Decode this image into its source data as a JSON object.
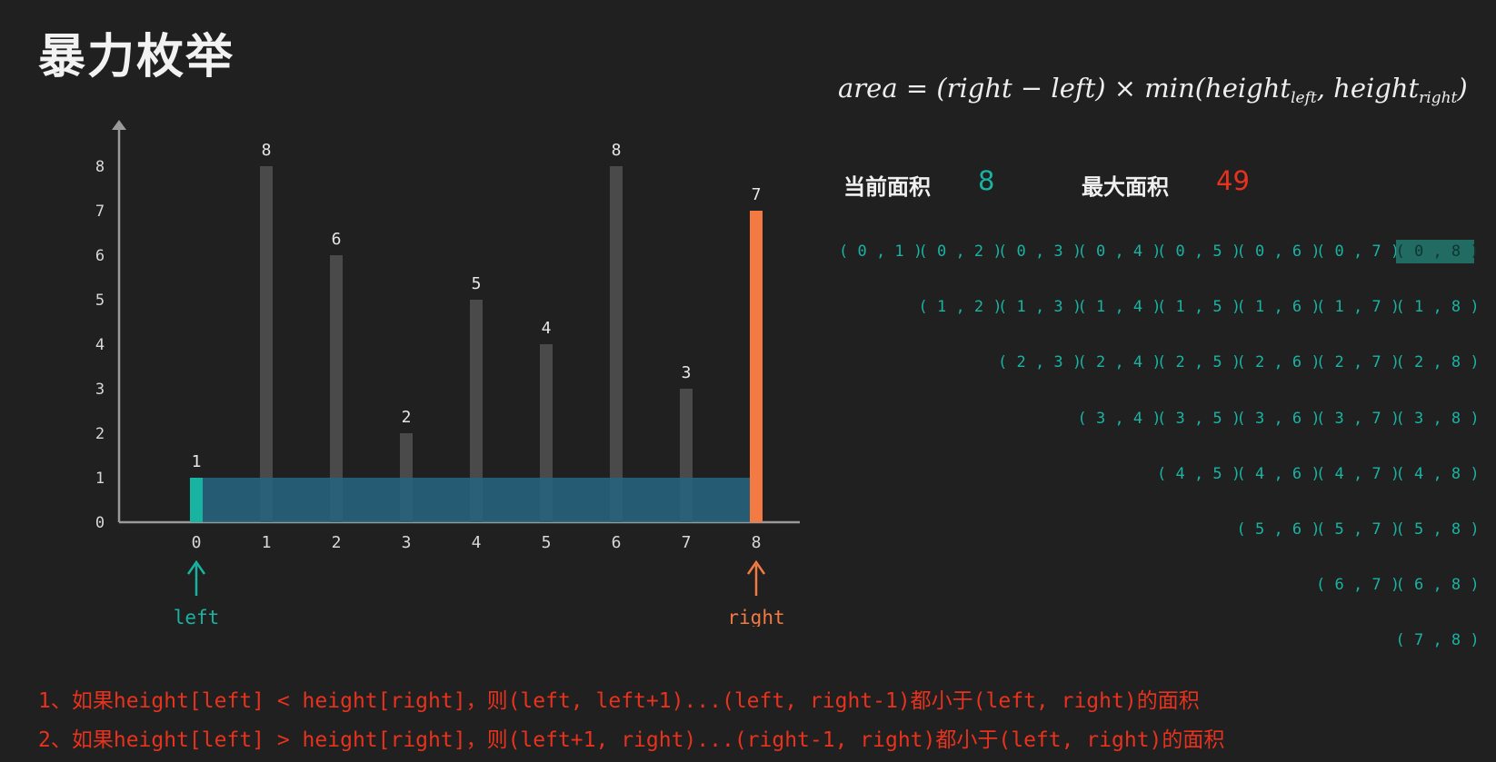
{
  "title": "暴力枚举",
  "formula": {
    "prefix": "area = (right − left) × min(height",
    "sub1": "left",
    "mid": ", height",
    "sub2": "right",
    "suffix": ")"
  },
  "stats": {
    "current_label": "当前面积",
    "current_value": "8",
    "max_label": "最大面积",
    "max_value": "49",
    "current_color": "#19b3a2",
    "max_color": "#e8321d"
  },
  "pairs": [
    [
      "(0,1)",
      "(0,2)",
      "(0,3)",
      "(0,4)",
      "(0,5)",
      "(0,6)",
      "(0,7)",
      "(0,8)"
    ],
    [
      "(1,2)",
      "(1,3)",
      "(1,4)",
      "(1,5)",
      "(1,6)",
      "(1,7)",
      "(1,8)"
    ],
    [
      "(2,3)",
      "(2,4)",
      "(2,5)",
      "(2,6)",
      "(2,7)",
      "(2,8)"
    ],
    [
      "(3,4)",
      "(3,5)",
      "(3,6)",
      "(3,7)",
      "(3,8)"
    ],
    [
      "(4,5)",
      "(4,6)",
      "(4,7)",
      "(4,8)"
    ],
    [
      "(5,6)",
      "(5,7)",
      "(5,8)"
    ],
    [
      "(6,7)",
      "(6,8)"
    ],
    [
      "(7,8)"
    ]
  ],
  "active_pair": "(0,8)",
  "notes": [
    "1、如果height[left] < height[right]，则(left, left+1)...(left, right-1)都小于(left, right)的面积",
    "2、如果height[left] > height[right]，则(left+1, right)...(right-1, right)都小于(left, right)的面积"
  ],
  "chart_data": {
    "type": "bar",
    "categories": [
      "0",
      "1",
      "2",
      "3",
      "4",
      "5",
      "6",
      "7",
      "8"
    ],
    "values": [
      1,
      8,
      6,
      2,
      5,
      4,
      8,
      3,
      7
    ],
    "y_ticks": [
      0,
      1,
      2,
      3,
      4,
      5,
      6,
      7,
      8
    ],
    "ylim": [
      0,
      8
    ],
    "left_index": 0,
    "right_index": 8,
    "left_label": "left",
    "right_label": "right",
    "area_height": 1,
    "colors": {
      "bar": "#4a4a4a",
      "left": "#19b3a2",
      "right": "#f47a44",
      "area": "#27637f",
      "axis": "#9a9a9a"
    }
  }
}
